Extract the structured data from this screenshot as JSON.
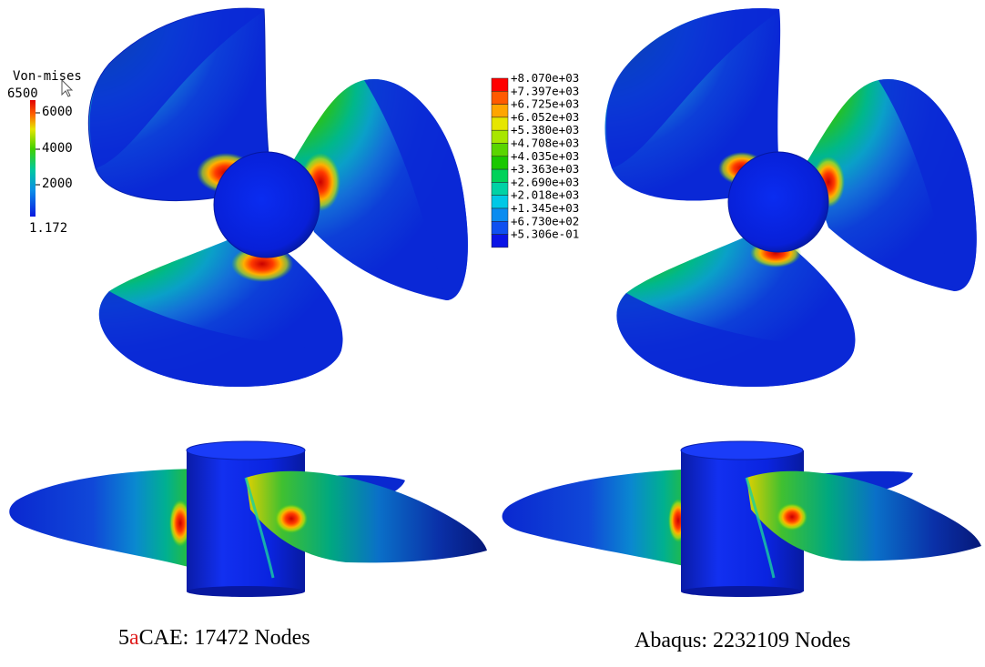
{
  "left_legend": {
    "title": "Von-mises",
    "ticks": [
      "6500",
      "6000",
      "4000",
      "2000",
      "1.172"
    ]
  },
  "right_legend": {
    "labels": [
      "+8.070e+03",
      "+7.397e+03",
      "+6.725e+03",
      "+6.052e+03",
      "+5.380e+03",
      "+4.708e+03",
      "+4.035e+03",
      "+3.363e+03",
      "+2.690e+03",
      "+2.018e+03",
      "+1.345e+03",
      "+6.730e+02",
      "+5.306e-01"
    ],
    "colors": [
      "#ff0000",
      "#ff5a00",
      "#ffa500",
      "#e6e600",
      "#a8e600",
      "#5ad500",
      "#19c800",
      "#00d25a",
      "#00d2a5",
      "#00c8e6",
      "#0a8cf0",
      "#0f50f0",
      "#0a14e6"
    ]
  },
  "captions": {
    "left_prefix": "5",
    "left_highlight": "a",
    "left_rest": "CAE:  17472 Nodes",
    "left_highlight_color": "#e02020",
    "right": "Abaqus: 2232109 Nodes"
  },
  "colors": {
    "body_blue": "#0a1ee0",
    "stress_red": "#e51a10"
  }
}
